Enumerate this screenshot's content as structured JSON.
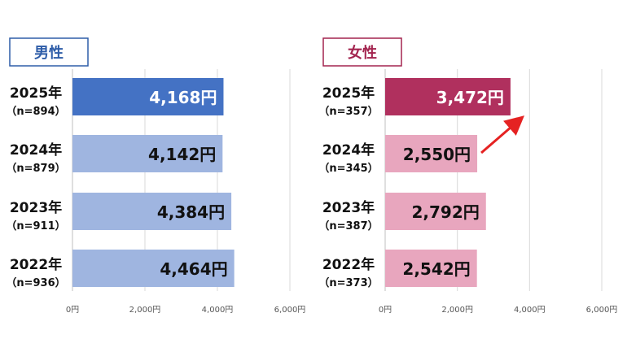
{
  "chart_data": [
    {
      "type": "bar",
      "orientation": "horizontal",
      "title": "男性",
      "categories": [
        "2025年",
        "2024年",
        "2023年",
        "2022年"
      ],
      "sample_sizes": [
        "（n=894）",
        "（n=879）",
        "（n=911）",
        "（n=936）"
      ],
      "values": [
        4168,
        4142,
        4384,
        4464
      ],
      "value_labels": [
        "4,168円",
        "4,142円",
        "4,384円",
        "4,464円"
      ],
      "xlim": [
        0,
        6000
      ],
      "x_ticks": [
        0,
        2000,
        4000,
        6000
      ],
      "x_tick_labels": [
        "0円",
        "2,000円",
        "4,000円",
        "6,000円"
      ],
      "grid": true,
      "colors": {
        "highlight": "#4472C4",
        "normal": "#9FB5E0",
        "title": "#2E5DA8"
      }
    },
    {
      "type": "bar",
      "orientation": "horizontal",
      "title": "女性",
      "categories": [
        "2025年",
        "2024年",
        "2023年",
        "2022年"
      ],
      "sample_sizes": [
        "（n=357）",
        "（n=345）",
        "（n=387）",
        "（n=373）"
      ],
      "values": [
        3472,
        2550,
        2792,
        2542
      ],
      "value_labels": [
        "3,472円",
        "2,550円",
        "2,792円",
        "2,542円"
      ],
      "xlim": [
        0,
        6000
      ],
      "x_ticks": [
        0,
        2000,
        4000,
        6000
      ],
      "x_tick_labels": [
        "0円",
        "2,000円",
        "4,000円",
        "6,000円"
      ],
      "grid": true,
      "annotation": "arrow from 2024 bar end toward 2025 bar end",
      "colors": {
        "highlight": "#B0305E",
        "normal": "#E8A6BE",
        "title": "#A3244F",
        "arrow": "#E52222"
      }
    }
  ]
}
